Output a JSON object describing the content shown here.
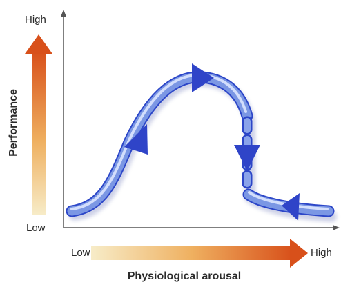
{
  "axes": {
    "y_title": "Performance",
    "y_high": "High",
    "y_low": "Low",
    "x_title": "Physiological arousal",
    "x_low": "Low",
    "x_high": "High"
  },
  "colors": {
    "curve_main": "#6f8fe0",
    "curve_highlight": "#c7d6fb",
    "curve_dark": "#2c46c8",
    "arrow_dark": "#d2551a",
    "arrow_light": "#f6e2b4",
    "axis": "#555555"
  }
}
